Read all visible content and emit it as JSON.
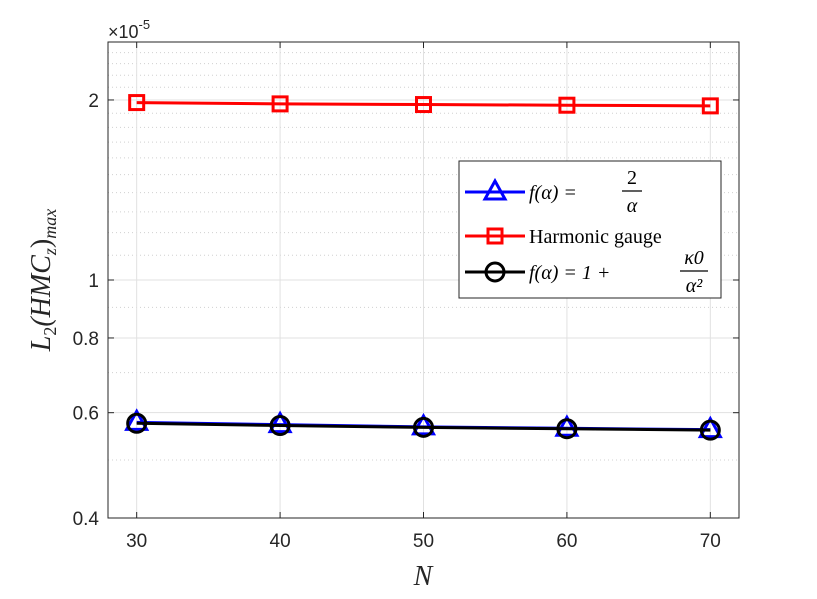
{
  "chart_data": {
    "type": "line",
    "x": [
      30,
      40,
      50,
      60,
      70
    ],
    "xlabel": "N",
    "ylabel": "L2(HMCz)max",
    "ylabel_parts": {
      "base": "L",
      "sub": "2",
      "body": "(HMC",
      "sub2": "z",
      "close": ")",
      "sub3": "max"
    },
    "xlim": [
      28,
      72
    ],
    "ylim": [
      0.4,
      2.5
    ],
    "y_scale": "log",
    "y_multiplier": "×10",
    "y_exponent": "-5",
    "xticks": [
      "30",
      "40",
      "50",
      "60",
      "70"
    ],
    "yticks": [
      {
        "value": 0.4,
        "label": "0.4"
      },
      {
        "value": 0.6,
        "label": "0.6"
      },
      {
        "value": 0.8,
        "label": "0.8"
      },
      {
        "value": 1.0,
        "label": "1"
      },
      {
        "value": 2.0,
        "label": "2"
      }
    ],
    "grid": true,
    "legend_position": "right",
    "series": [
      {
        "name": "f(α) = 2/α",
        "legend": {
          "lhs": "f(α) = ",
          "num": "2",
          "den": "α"
        },
        "color": "#0000ff",
        "marker": "triangle",
        "values": [
          0.578,
          0.573,
          0.568,
          0.565,
          0.562
        ]
      },
      {
        "name": "Harmonic gauge",
        "legend": {
          "text": "Harmonic gauge"
        },
        "color": "#ff0000",
        "marker": "square",
        "values": [
          1.98,
          1.97,
          1.965,
          1.96,
          1.955
        ]
      },
      {
        "name": "f(α) = 1 + κ0/α²",
        "legend": {
          "lhs": "f(α) = 1 + ",
          "num": "κ0",
          "den": "α²"
        },
        "color": "#000000",
        "marker": "circle",
        "values": [
          0.576,
          0.571,
          0.567,
          0.564,
          0.561
        ]
      }
    ]
  }
}
